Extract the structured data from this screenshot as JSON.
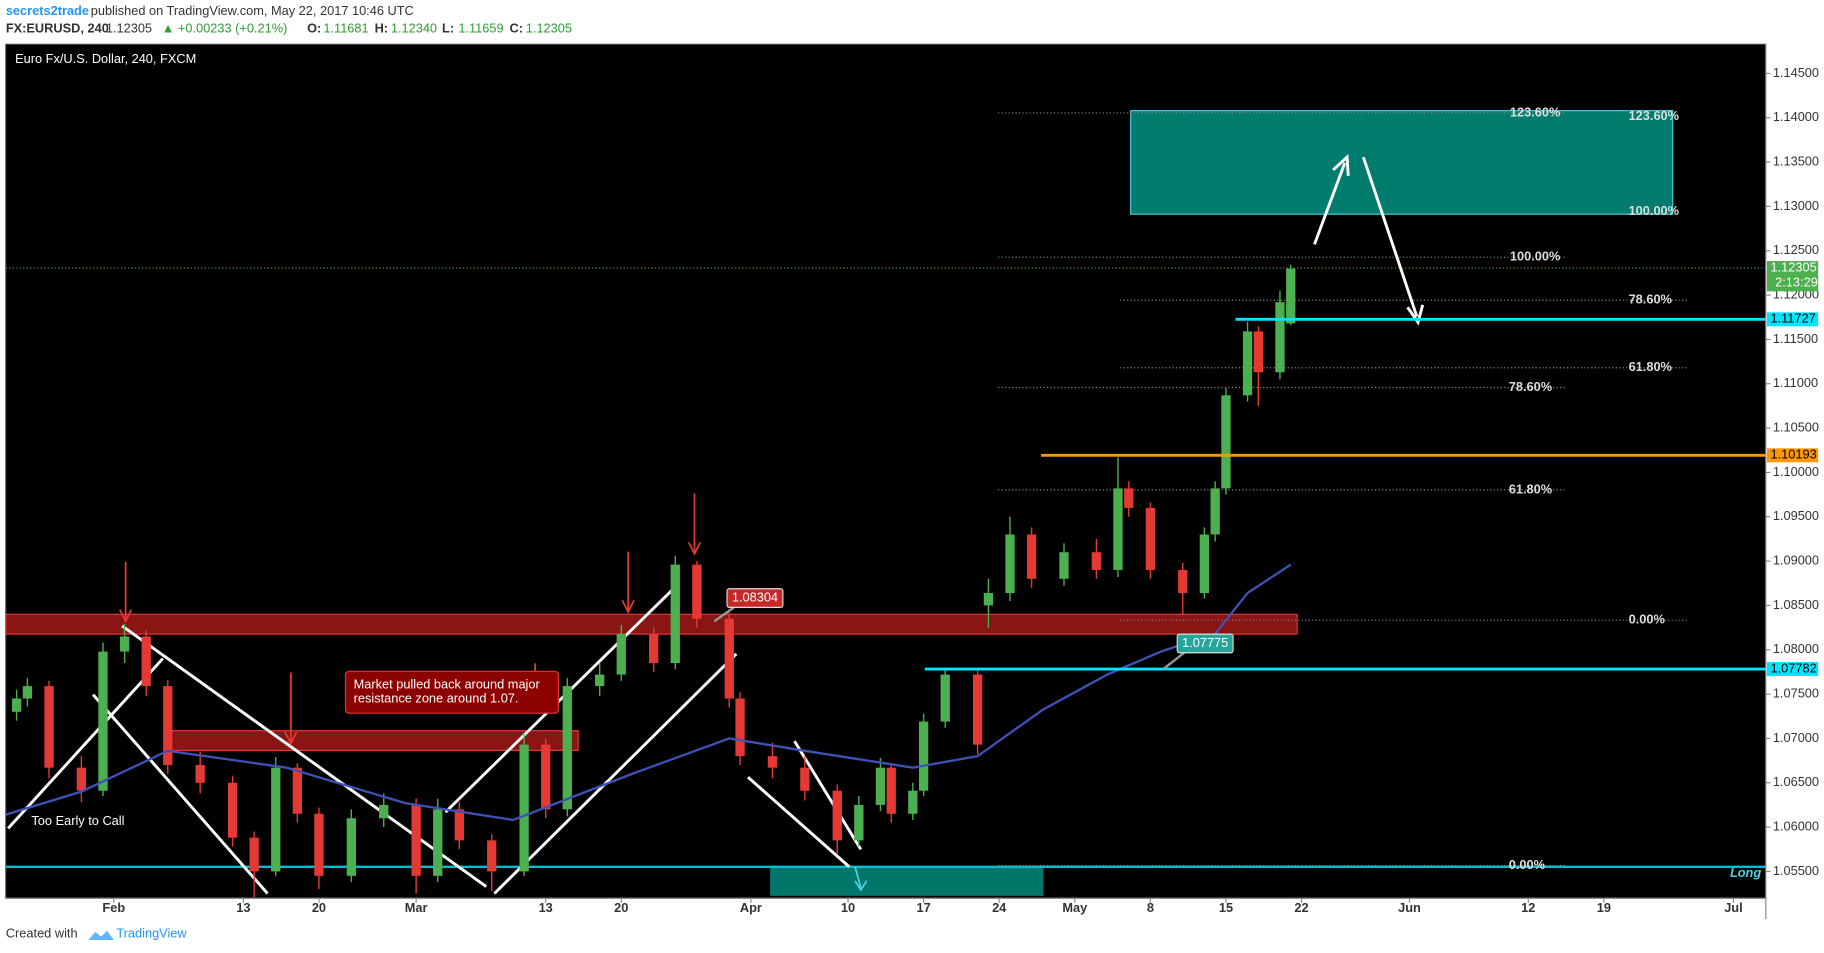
{
  "header": {
    "author": "secrets2trade",
    "published": "published on TradingView.com, May 22, 2017 10:46 UTC",
    "symbol": "FX:EURUSD, 240",
    "last": "1.12305",
    "change": "▲ +0.00233 (+0.21%)",
    "ohlc": [
      [
        "O:",
        "1.11681"
      ],
      [
        "H:",
        "1.12340"
      ],
      [
        "L:",
        "1.11659"
      ],
      [
        "C:",
        "1.12305"
      ]
    ]
  },
  "chart_data": {
    "type": "candlestick",
    "title": "Euro Fx/U.S. Dollar, 240, FXCM",
    "xlim": [
      "2017-01-22",
      "2017-07-04"
    ],
    "ylim": [
      1.05198,
      1.14828
    ],
    "xticks": [
      {
        "value": "2017-02-01",
        "label": "Feb"
      },
      {
        "value": "2017-02-13",
        "label": "13"
      },
      {
        "value": "2017-02-20",
        "label": "20"
      },
      {
        "value": "2017-03-01",
        "label": "Mar"
      },
      {
        "value": "2017-03-13",
        "label": "13"
      },
      {
        "value": "2017-03-20",
        "label": "20"
      },
      {
        "value": "2017-04-01",
        "label": "Apr"
      },
      {
        "value": "2017-04-10",
        "label": "10"
      },
      {
        "value": "2017-04-17",
        "label": "17"
      },
      {
        "value": "2017-04-24",
        "label": "24"
      },
      {
        "value": "2017-05-01",
        "label": "May"
      },
      {
        "value": "2017-05-08",
        "label": "8"
      },
      {
        "value": "2017-05-15",
        "label": "15"
      },
      {
        "value": "2017-05-22",
        "label": "22"
      },
      {
        "value": "2017-06-01",
        "label": "Jun"
      },
      {
        "value": "2017-06-12",
        "label": "12"
      },
      {
        "value": "2017-06-19",
        "label": "19"
      },
      {
        "value": "2017-07-01",
        "label": "Jul"
      }
    ],
    "yticks": [
      {
        "value": 1.145,
        "label": "1.14500"
      },
      {
        "value": 1.14,
        "label": "1.14000"
      },
      {
        "value": 1.135,
        "label": "1.13500"
      },
      {
        "value": 1.13,
        "label": "1.13000"
      },
      {
        "value": 1.125,
        "label": "1.12500"
      },
      {
        "value": 1.12,
        "label": "1.12000"
      },
      {
        "value": 1.115,
        "label": "1.11500"
      },
      {
        "value": 1.11,
        "label": "1.11000"
      },
      {
        "value": 1.105,
        "label": "1.10500"
      },
      {
        "value": 1.1,
        "label": "1.10000"
      },
      {
        "value": 1.095,
        "label": "1.09500"
      },
      {
        "value": 1.09,
        "label": "1.09000"
      },
      {
        "value": 1.085,
        "label": "1.08500"
      },
      {
        "value": 1.08,
        "label": "1.08000"
      },
      {
        "value": 1.075,
        "label": "1.07500"
      },
      {
        "value": 1.07,
        "label": "1.07000"
      },
      {
        "value": 1.065,
        "label": "1.06500"
      },
      {
        "value": 1.06,
        "label": "1.06000"
      },
      {
        "value": 1.055,
        "label": "1.05500"
      }
    ],
    "up_color": "#4caf50",
    "down_color": "#e53935",
    "x": [
      "2017-01-23",
      "2017-01-24",
      "2017-01-26",
      "2017-01-29",
      "2017-01-31",
      "2017-02-02",
      "2017-02-04",
      "2017-02-06",
      "2017-02-09",
      "2017-02-12",
      "2017-02-14",
      "2017-02-16",
      "2017-02-18",
      "2017-02-20",
      "2017-02-23",
      "2017-02-26",
      "2017-03-01",
      "2017-03-03",
      "2017-03-05",
      "2017-03-08",
      "2017-03-11",
      "2017-03-13",
      "2017-03-15",
      "2017-03-18",
      "2017-03-20",
      "2017-03-23",
      "2017-03-25",
      "2017-03-27",
      "2017-03-30",
      "2017-03-31",
      "2017-04-03",
      "2017-04-06",
      "2017-04-09",
      "2017-04-11",
      "2017-04-13",
      "2017-04-14",
      "2017-04-16",
      "2017-04-17",
      "2017-04-19",
      "2017-04-22",
      "2017-04-23",
      "2017-04-25",
      "2017-04-27",
      "2017-04-30",
      "2017-05-03",
      "2017-05-05",
      "2017-05-06",
      "2017-05-08",
      "2017-05-11",
      "2017-05-13",
      "2017-05-14",
      "2017-05-15",
      "2017-05-17",
      "2017-05-18",
      "2017-05-20",
      "2017-05-21"
    ],
    "open": [
      1.073,
      1.0745,
      1.0759,
      1.0667,
      1.0641,
      1.0798,
      1.0815,
      1.0759,
      1.067,
      1.065,
      1.0588,
      1.055,
      1.0667,
      1.0615,
      1.0545,
      1.061,
      1.0625,
      1.0545,
      1.062,
      1.0585,
      1.055,
      1.0693,
      1.062,
      1.0759,
      1.0772,
      1.0818,
      1.0785,
      1.0896,
      1.0835,
      1.0745,
      1.068,
      1.0667,
      1.0641,
      1.0585,
      1.0625,
      1.0667,
      1.0615,
      1.0641,
      1.0719,
      1.0772,
      1.085,
      1.0864,
      1.093,
      1.088,
      1.091,
      1.089,
      1.0982,
      1.096,
      1.089,
      1.0864,
      1.093,
      1.0982,
      1.1087,
      1.1159,
      1.1113,
      1.1168
    ],
    "high": [
      1.0755,
      1.0768,
      1.0765,
      1.068,
      1.0808,
      1.0829,
      1.0822,
      1.0766,
      1.0685,
      1.0658,
      1.0595,
      1.0679,
      1.0672,
      1.0622,
      1.062,
      1.0638,
      1.0632,
      1.0632,
      1.0628,
      1.0592,
      1.0705,
      1.07,
      1.0768,
      1.0785,
      1.0828,
      1.0825,
      1.0906,
      1.09,
      1.0842,
      1.0752,
      1.0695,
      1.068,
      1.0648,
      1.0635,
      1.0678,
      1.0672,
      1.065,
      1.0728,
      1.078,
      1.0778,
      1.088,
      1.095,
      1.0938,
      1.092,
      1.0925,
      1.1017,
      1.099,
      1.0966,
      1.0898,
      1.0938,
      1.099,
      1.1095,
      1.117,
      1.1165,
      1.1205,
      1.1234
    ],
    "low": [
      1.072,
      1.0736,
      1.0655,
      1.0628,
      1.0635,
      1.0785,
      1.0748,
      1.066,
      1.0638,
      1.0578,
      1.0521,
      1.0545,
      1.0605,
      1.053,
      1.0538,
      1.06,
      1.0525,
      1.0538,
      1.0575,
      1.0528,
      1.0545,
      1.061,
      1.0612,
      1.0748,
      1.0765,
      1.0775,
      1.0778,
      1.0825,
      1.0735,
      1.067,
      1.0655,
      1.063,
      1.057,
      1.0578,
      1.0618,
      1.0605,
      1.0608,
      1.0635,
      1.0712,
      1.0682,
      1.0825,
      1.0855,
      1.087,
      1.0872,
      1.088,
      1.0882,
      1.095,
      1.088,
      1.084,
      1.0858,
      1.0922,
      1.0975,
      1.108,
      1.1075,
      1.1105,
      1.1166
    ],
    "close": [
      1.0745,
      1.0759,
      1.0667,
      1.0641,
      1.0798,
      1.0815,
      1.0759,
      1.067,
      1.065,
      1.0588,
      1.055,
      1.0667,
      1.0615,
      1.0545,
      1.061,
      1.0625,
      1.0545,
      1.062,
      1.0585,
      1.055,
      1.0693,
      1.062,
      1.0759,
      1.0772,
      1.0818,
      1.0785,
      1.0896,
      1.0835,
      1.0745,
      1.068,
      1.0667,
      1.0641,
      1.0585,
      1.0625,
      1.0667,
      1.0615,
      1.0641,
      1.0719,
      1.0772,
      1.0693,
      1.0864,
      1.093,
      1.088,
      1.091,
      1.089,
      1.0982,
      1.096,
      1.089,
      1.0864,
      1.093,
      1.0982,
      1.1087,
      1.1159,
      1.1113,
      1.1192,
      1.123
    ],
    "ma": {
      "color": "#3f51b5",
      "x": [
        "2017-01-22",
        "2017-01-29",
        "2017-02-06",
        "2017-02-17",
        "2017-02-28",
        "2017-03-10",
        "2017-03-21",
        "2017-03-30",
        "2017-04-06",
        "2017-04-16",
        "2017-04-22",
        "2017-04-28",
        "2017-05-04",
        "2017-05-09",
        "2017-05-14",
        "2017-05-17",
        "2017-05-21"
      ],
      "values": [
        1.0614,
        1.064,
        1.0686,
        1.0667,
        1.0627,
        1.0608,
        1.066,
        1.07,
        1.0686,
        1.0667,
        1.068,
        1.0732,
        1.0772,
        1.0798,
        1.0818,
        1.0864,
        1.0896
      ]
    },
    "last_price": {
      "value": 1.12305,
      "color": "#4caf50",
      "countdown": "2:13:29"
    },
    "levels": [
      {
        "value": 1.11727,
        "color": "#00e5ff"
      },
      {
        "value": 1.10193,
        "color": "#ff9800"
      },
      {
        "value": 1.07782,
        "color": "#00e5ff"
      }
    ],
    "callouts": [
      {
        "value": 1.08304,
        "color": "#c62828"
      },
      {
        "value": 1.07775,
        "color": "#26a69a"
      }
    ],
    "fib_labels": [
      "123.60%",
      "123.60%",
      "100.00%",
      "100.00%",
      "78.60%",
      "61.80%",
      "78.60%",
      "61.80%",
      "0.00%",
      "0.00%"
    ],
    "annotations": [
      "Market pulled back around major",
      "resistance zone around 1.07.",
      "Too Early to Call",
      "Long"
    ]
  },
  "footer": {
    "created": "Created with",
    "brand": "TradingView"
  }
}
